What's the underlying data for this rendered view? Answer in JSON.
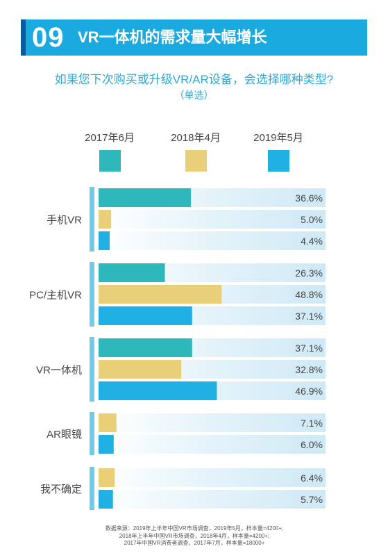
{
  "header": {
    "number": "09",
    "title": "VR一体机的需求量大幅增长"
  },
  "question": "如果您下次购买或升级VR/AR设备，会选择哪种类型?",
  "question_sub": "（单选）",
  "colors": {
    "header": "#1aaae0",
    "teal": "#2fb8bb",
    "yellow": "#e8cf78",
    "blue": "#20b0e3",
    "track": "#d6eef8",
    "bracket": "#6fcce8"
  },
  "legend": [
    {
      "label": "2017年6月",
      "color": "#2fb8bb"
    },
    {
      "label": "2018年4月",
      "color": "#e8cf78"
    },
    {
      "label": "2019年5月",
      "color": "#20b0e3"
    }
  ],
  "chart_data": {
    "type": "bar",
    "orientation": "horizontal",
    "categories": [
      "手机VR",
      "PC/主机VR",
      "VR一体机",
      "AR眼镜",
      "我不确定"
    ],
    "series": [
      {
        "name": "2017年6月",
        "values": [
          36.6,
          26.3,
          37.1,
          null,
          null
        ]
      },
      {
        "name": "2018年4月",
        "values": [
          5.0,
          48.8,
          32.8,
          7.1,
          6.4
        ]
      },
      {
        "name": "2019年5月",
        "values": [
          4.4,
          37.1,
          46.9,
          6.0,
          5.7
        ]
      }
    ],
    "value_labels": {
      "2017年6月": [
        "36.6%",
        "26.3%",
        "37.1%",
        "",
        ""
      ],
      "2018年4月": [
        "5.0%",
        "48.8%",
        "32.8%",
        "7.1%",
        "6.4%"
      ],
      "2019年5月": [
        "4.4%",
        "37.1%",
        "46.9%",
        "6.0%",
        "5.7%"
      ]
    },
    "xlim": [
      0,
      90
    ],
    "unit": "%"
  },
  "source_lines": [
    "数据来源：2019年上半年中国VR市场调查，2019年5月，样本量=4200+;",
    "2018年上半年中国VR市场调查，2018年4月，样本量=4200+;",
    "2017年中国VR消费者调查，2017年7月，样本量=18000+"
  ]
}
